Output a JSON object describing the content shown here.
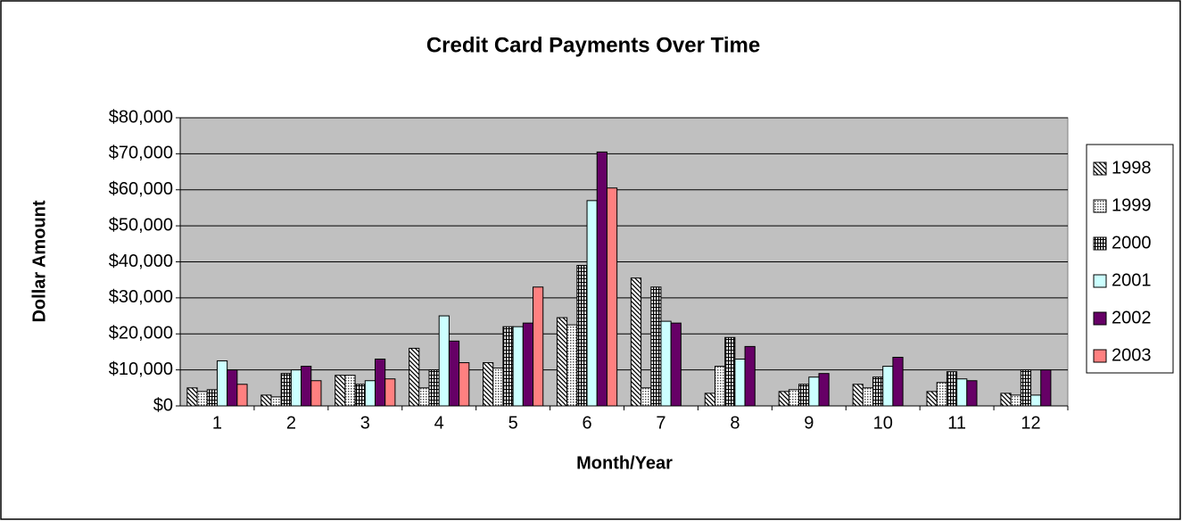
{
  "chart_data": {
    "type": "bar",
    "title": "Credit Card Payments Over Time",
    "x_label": "Month/Year",
    "y_label": "Dollar Amount",
    "categories": [
      "1",
      "2",
      "3",
      "4",
      "5",
      "6",
      "7",
      "8",
      "9",
      "10",
      "11",
      "12"
    ],
    "series": [
      {
        "name": "1998",
        "color": "#ffffff",
        "pattern": "diagonal",
        "values": [
          5000,
          3000,
          8500,
          16000,
          12000,
          24500,
          35500,
          3500,
          4000,
          6000,
          4000,
          3500
        ]
      },
      {
        "name": "1999",
        "color": "#ffffff",
        "pattern": "dots",
        "values": [
          4000,
          2500,
          8500,
          5000,
          10500,
          22500,
          5000,
          11000,
          4500,
          5000,
          6500,
          3000
        ]
      },
      {
        "name": "2000",
        "color": "#ffffff",
        "pattern": "vertical",
        "values": [
          4500,
          9000,
          6000,
          10000,
          22000,
          39000,
          33000,
          19000,
          6000,
          8000,
          9500,
          10000
        ]
      },
      {
        "name": "2001",
        "color": "#ccffff",
        "values": [
          12500,
          10000,
          7000,
          25000,
          22000,
          57000,
          23500,
          13000,
          8000,
          11000,
          7500,
          3000
        ]
      },
      {
        "name": "2002",
        "color": "#660066",
        "values": [
          10000,
          11000,
          13000,
          18000,
          23000,
          70500,
          23000,
          16500,
          9000,
          13500,
          7000,
          10000
        ]
      },
      {
        "name": "2003",
        "color": "#ff8080",
        "values": [
          6000,
          7000,
          7500,
          12000,
          33000,
          60500,
          null,
          null,
          null,
          null,
          null,
          null
        ]
      }
    ],
    "ylim": [
      0,
      80000
    ],
    "yticks": [
      {
        "value": 0,
        "label": "$0"
      },
      {
        "value": 10000,
        "label": "$10,000"
      },
      {
        "value": 20000,
        "label": "$20,000"
      },
      {
        "value": 30000,
        "label": "$30,000"
      },
      {
        "value": 40000,
        "label": "$40,000"
      },
      {
        "value": 50000,
        "label": "$50,000"
      },
      {
        "value": 60000,
        "label": "$60,000"
      },
      {
        "value": 70000,
        "label": "$70,000"
      },
      {
        "value": 80000,
        "label": "$80,000"
      }
    ],
    "grid": true,
    "plot_background": "#c0c0c0",
    "legend": "right"
  }
}
